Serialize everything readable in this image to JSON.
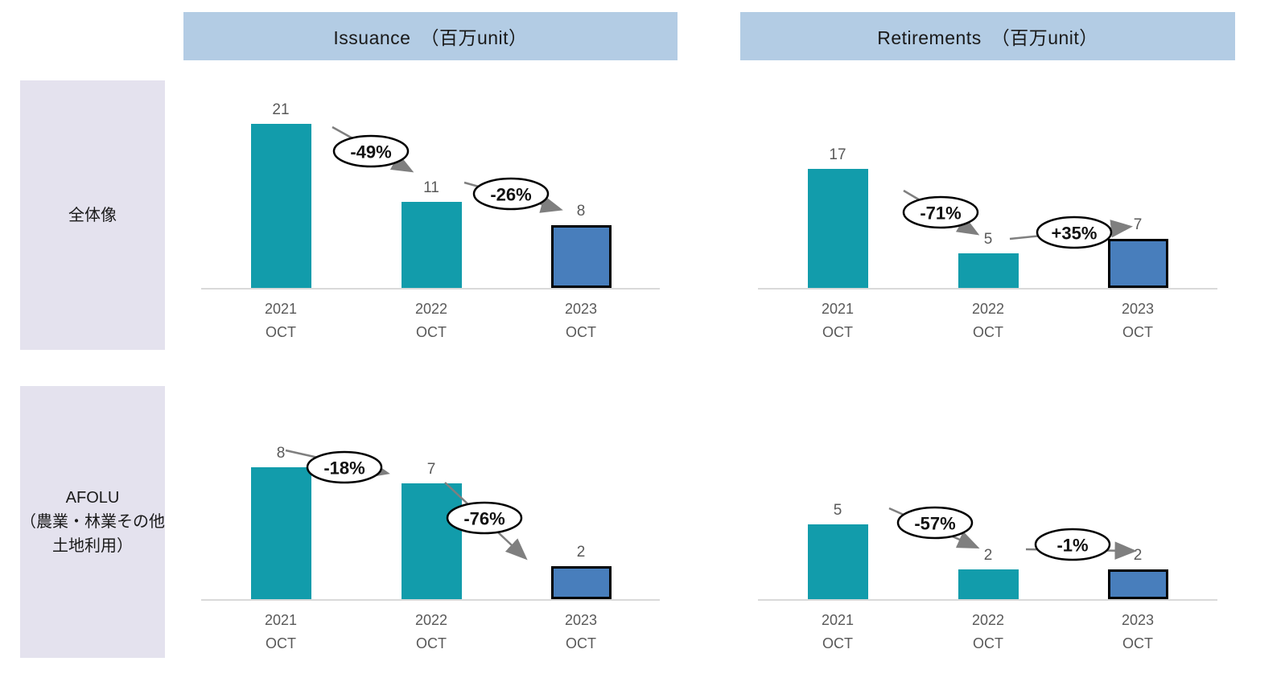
{
  "page": {
    "background": "#ffffff"
  },
  "headers": [
    {
      "label": "Issuance　（百万unit）"
    },
    {
      "label": "Retirements　（百万unit）"
    }
  ],
  "row_labels": [
    {
      "title": "全体像",
      "subtitle": ""
    },
    {
      "title": "AFOLU",
      "subtitle": "（農業・林業その他土地利用）"
    }
  ],
  "colors": {
    "bar_teal": "#129CAB",
    "bar_highlight_blue": "#487EBC",
    "highlight_border": "#000000",
    "header_bg": "#B3CCE4",
    "row_label_bg": "#E4E2EE",
    "axis_line": "#D9D9D9",
    "label_gray": "#595959",
    "arrow_gray": "#7F7F7F",
    "ellipse_stroke": "#000000",
    "ellipse_fill": "#FFFFFF"
  },
  "chart_data": [
    {
      "type": "bar",
      "group": "全体像",
      "measure": "Issuance　（百万unit）",
      "categories": [
        "2021 OCT",
        "2022 OCT",
        "2023 OCT"
      ],
      "values": [
        21,
        11,
        8
      ],
      "value_labels": [
        "21",
        "11",
        "8"
      ],
      "ylim": [
        0,
        25
      ],
      "grid": false,
      "highlight_index": 2,
      "annotations": [
        {
          "label": "-49%",
          "from": "2021 OCT",
          "to": "2022 OCT",
          "ellipse": [
            233,
            73
          ],
          "arrow": [
            185,
            43,
            282,
            97
          ]
        },
        {
          "label": "-26%",
          "from": "2022 OCT",
          "to": "2023 OCT",
          "ellipse": [
            407,
            126
          ],
          "arrow": [
            349,
            112,
            467,
            145
          ]
        }
      ]
    },
    {
      "type": "bar",
      "group": "全体像",
      "measure": "Retirements　（百万unit）",
      "categories": [
        "2021 OCT",
        "2022 OCT",
        "2023 OCT"
      ],
      "values": [
        17,
        5,
        7
      ],
      "value_labels": [
        "17",
        "5",
        "7"
      ],
      "ylim": [
        0,
        28
      ],
      "grid": false,
      "highlight_index": 2,
      "annotations": [
        {
          "label": "-71%",
          "from": "2021 OCT",
          "to": "2022 OCT",
          "ellipse": [
            249,
            149
          ],
          "arrow": [
            203,
            122,
            293,
            175
          ]
        },
        {
          "label": "+35%",
          "from": "2022 OCT",
          "to": "2023 OCT",
          "ellipse": [
            415,
            174
          ],
          "arrow": [
            335,
            182,
            483,
            167
          ]
        }
      ]
    },
    {
      "type": "bar",
      "group": "AFOLU（農業・林業その他土地利用）",
      "measure": "Issuance　（百万unit）",
      "categories": [
        "2021 OCT",
        "2022 OCT",
        "2023 OCT"
      ],
      "values": [
        8,
        7,
        2
      ],
      "value_labels": [
        "8",
        "7",
        "2"
      ],
      "ylim": [
        0,
        10
      ],
      "grid": false,
      "highlight_index": 2,
      "annotations": [
        {
          "label": "-18%",
          "from": "2021 OCT",
          "to": "2022 OCT",
          "ellipse": [
            200,
            41
          ],
          "arrow": [
            127,
            20,
            252,
            48
          ]
        },
        {
          "label": "-76%",
          "from": "2022 OCT",
          "to": "2023 OCT",
          "ellipse": [
            374,
            104
          ],
          "arrow": [
            325,
            60,
            424,
            153
          ]
        }
      ]
    },
    {
      "type": "bar",
      "group": "AFOLU（農業・林業その他土地利用）",
      "measure": "Retirements　（百万unit）",
      "categories": [
        "2021 OCT",
        "2022 OCT",
        "2023 OCT"
      ],
      "values": [
        5,
        2,
        2
      ],
      "value_labels": [
        "5",
        "2",
        "2"
      ],
      "ylim": [
        0,
        11
      ],
      "grid": false,
      "highlight_index": 2,
      "annotations": [
        {
          "label": "-57%",
          "from": "2021 OCT",
          "to": "2022 OCT",
          "ellipse": [
            242,
            110
          ],
          "arrow": [
            185,
            92,
            293,
            140
          ]
        },
        {
          "label": "-1%",
          "from": "2022 OCT",
          "to": "2023 OCT",
          "ellipse": [
            413,
            137
          ],
          "arrow": [
            355,
            143,
            488,
            145
          ]
        }
      ]
    }
  ]
}
